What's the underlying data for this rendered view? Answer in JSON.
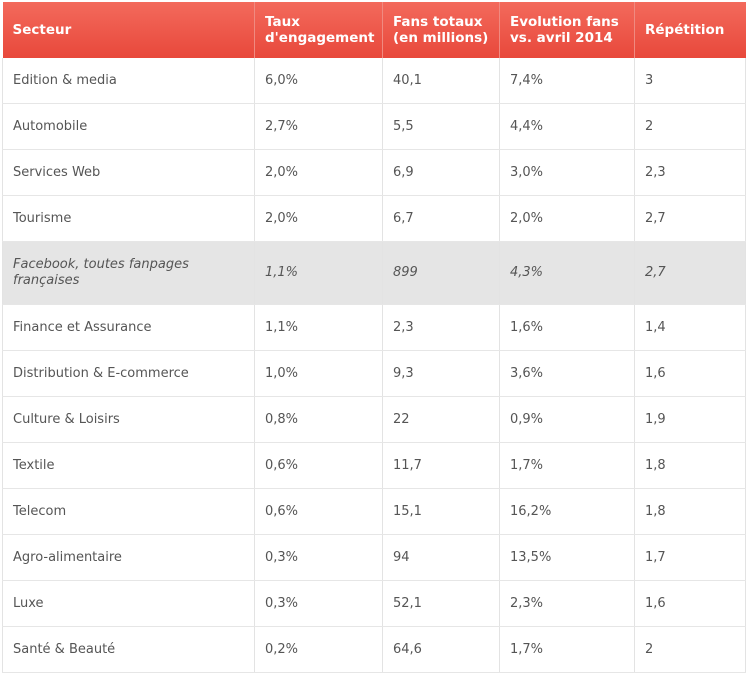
{
  "chart_data": {
    "type": "table",
    "columns": [
      "Secteur",
      "Taux d'engagement",
      "Fans totaux (en millions)",
      "Evolution fans vs. avril 2014",
      "Répétition"
    ],
    "rows": [
      {
        "secteur": "Edition & media",
        "taux": "6,0%",
        "fans": "40,1",
        "evolution": "7,4%",
        "repetition": "3"
      },
      {
        "secteur": "Automobile",
        "taux": "2,7%",
        "fans": "5,5",
        "evolution": "4,4%",
        "repetition": "2"
      },
      {
        "secteur": "Services Web",
        "taux": "2,0%",
        "fans": "6,9",
        "evolution": "3,0%",
        "repetition": "2,3"
      },
      {
        "secteur": "Tourisme",
        "taux": "2,0%",
        "fans": "6,7",
        "evolution": "2,0%",
        "repetition": "2,7"
      },
      {
        "secteur": "Facebook, toutes fanpages françaises",
        "taux": "1,1%",
        "fans": "899",
        "evolution": "4,3%",
        "repetition": "2,7",
        "highlight": true
      },
      {
        "secteur": "Finance et Assurance",
        "taux": "1,1%",
        "fans": "2,3",
        "evolution": "1,6%",
        "repetition": "1,4"
      },
      {
        "secteur": "Distribution & E-commerce",
        "taux": "1,0%",
        "fans": "9,3",
        "evolution": "3,6%",
        "repetition": "1,6"
      },
      {
        "secteur": "Culture & Loisirs",
        "taux": "0,8%",
        "fans": "22",
        "evolution": "0,9%",
        "repetition": "1,9"
      },
      {
        "secteur": "Textile",
        "taux": "0,6%",
        "fans": "11,7",
        "evolution": "1,7%",
        "repetition": "1,8"
      },
      {
        "secteur": "Telecom",
        "taux": "0,6%",
        "fans": "15,1",
        "evolution": "16,2%",
        "repetition": "1,8"
      },
      {
        "secteur": "Agro-alimentaire",
        "taux": "0,3%",
        "fans": "94",
        "evolution": "13,5%",
        "repetition": "1,7"
      },
      {
        "secteur": "Luxe",
        "taux": "0,3%",
        "fans": "52,1",
        "evolution": "2,3%",
        "repetition": "1,6"
      },
      {
        "secteur": "Santé & Beauté",
        "taux": "0,2%",
        "fans": "64,6",
        "evolution": "1,7%",
        "repetition": "2"
      }
    ],
    "header_color": "#ec5546",
    "highlight_row_color": "#e5e5e5"
  }
}
